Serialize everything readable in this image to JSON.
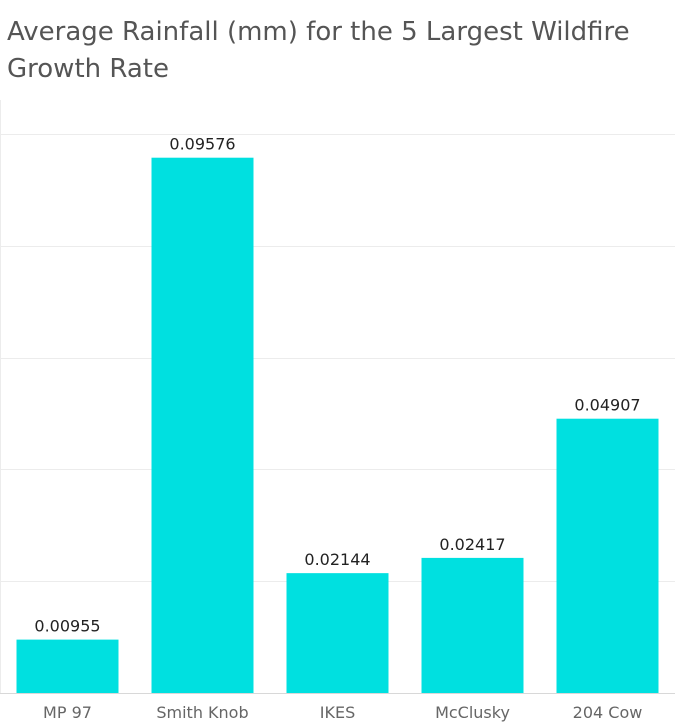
{
  "chart_data": {
    "type": "bar",
    "title": "Average Rainfall (mm) for the 5 Largest Wildfire Growth Rate",
    "xlabel": "",
    "ylabel": "",
    "categories": [
      "MP 97",
      "Smith Knob",
      "IKES",
      "McClusky",
      "204 Cow"
    ],
    "values": [
      0.00955,
      0.09576,
      0.02144,
      0.02417,
      0.04907
    ],
    "value_labels": [
      "0.00955",
      "0.09576",
      "0.02144",
      "0.02417",
      "0.04907"
    ],
    "ylim": [
      0,
      0.1
    ],
    "y_gridlines": [
      0.02,
      0.04,
      0.06,
      0.08,
      0.1
    ],
    "grid": true,
    "legend": "none",
    "bar_color": "#00e0e0",
    "grid_color": "#ececec",
    "title_color": "#555555",
    "value_label_color": "#222222",
    "tick_label_color": "#666666"
  }
}
